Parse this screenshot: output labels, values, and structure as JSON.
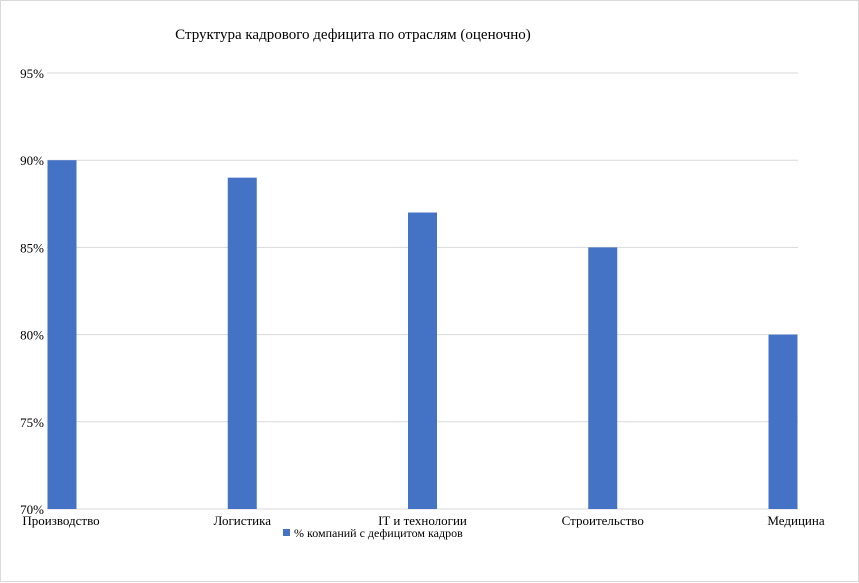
{
  "chart_data": {
    "type": "bar",
    "title": "Структура кадрового дефицита по отраслям (оценочно)",
    "categories": [
      "Производство",
      "Логистика",
      "IT и технологии",
      "Строительство",
      "Медицина"
    ],
    "series": [
      {
        "name": "% компаний с дефицитом кадров",
        "values": [
          90,
          89,
          87,
          85,
          80
        ],
        "color": "#4472C4"
      }
    ],
    "ylim": [
      70,
      95
    ],
    "yticks": [
      70,
      75,
      80,
      85,
      90,
      95
    ],
    "ytick_labels": [
      "70%",
      "75%",
      "80%",
      "85%",
      "90%",
      "95%"
    ],
    "xlabel": "",
    "ylabel": "",
    "grid": true,
    "legend_position": "bottom"
  }
}
